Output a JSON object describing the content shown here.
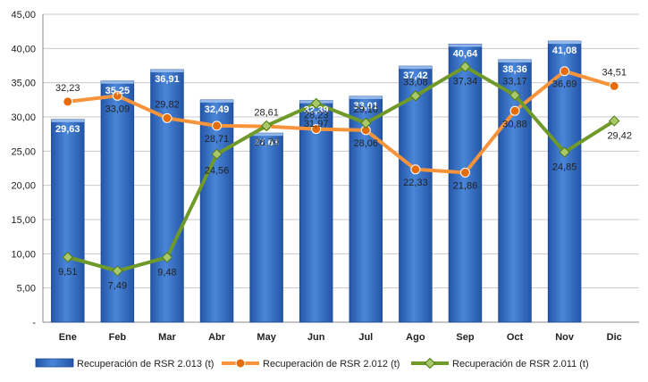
{
  "chart_data": {
    "type": "bar",
    "categories": [
      "Ene",
      "Feb",
      "Mar",
      "Abr",
      "May",
      "Jun",
      "Jul",
      "Ago",
      "Sep",
      "Oct",
      "Nov",
      "Dic"
    ],
    "ylim": [
      0,
      45
    ],
    "yticks": [
      "-",
      "5,00",
      "10,00",
      "15,00",
      "20,00",
      "25,00",
      "30,00",
      "35,00",
      "40,00",
      "45,00"
    ],
    "grid": true,
    "legend_position": "bottom",
    "series": [
      {
        "name": "Recuperación de RSR 2.013 (t)",
        "type": "bar",
        "color": "#3a6fc4",
        "values": [
          29.63,
          35.25,
          36.91,
          32.49,
          27.63,
          32.39,
          33.01,
          37.42,
          40.64,
          38.36,
          41.08,
          null
        ],
        "labels": [
          "29,63",
          "35,25",
          "36,91",
          "32,49",
          "27,63",
          "32,39",
          "33,01",
          "37,42",
          "40,64",
          "38,36",
          "41,08",
          ""
        ]
      },
      {
        "name": "Recuperación de RSR 2.012 (t)",
        "type": "line",
        "color": "#f7943b",
        "values": [
          32.23,
          33.09,
          29.82,
          28.71,
          28.61,
          28.23,
          28.06,
          22.33,
          21.86,
          30.88,
          36.69,
          34.51
        ],
        "labels": [
          "32,23",
          "33,09",
          "29,82",
          "28,71",
          "28,61",
          "28,23",
          "28,06",
          "22,33",
          "21,86",
          "30,88",
          "36,69",
          "34,51"
        ]
      },
      {
        "name": "Recuperación de RSR 2.011 (t)",
        "type": "line",
        "color": "#6f9a2a",
        "values": [
          9.51,
          7.49,
          9.48,
          24.56,
          28.7,
          31.97,
          29.1,
          33.08,
          37.34,
          33.17,
          24.85,
          29.42
        ],
        "labels": [
          "9,51",
          "7,49",
          "9,48",
          "24,56",
          "28,70",
          "31,97",
          "29,10",
          "33,08",
          "37,34",
          "33,17",
          "24,85",
          "29,42"
        ]
      }
    ]
  }
}
